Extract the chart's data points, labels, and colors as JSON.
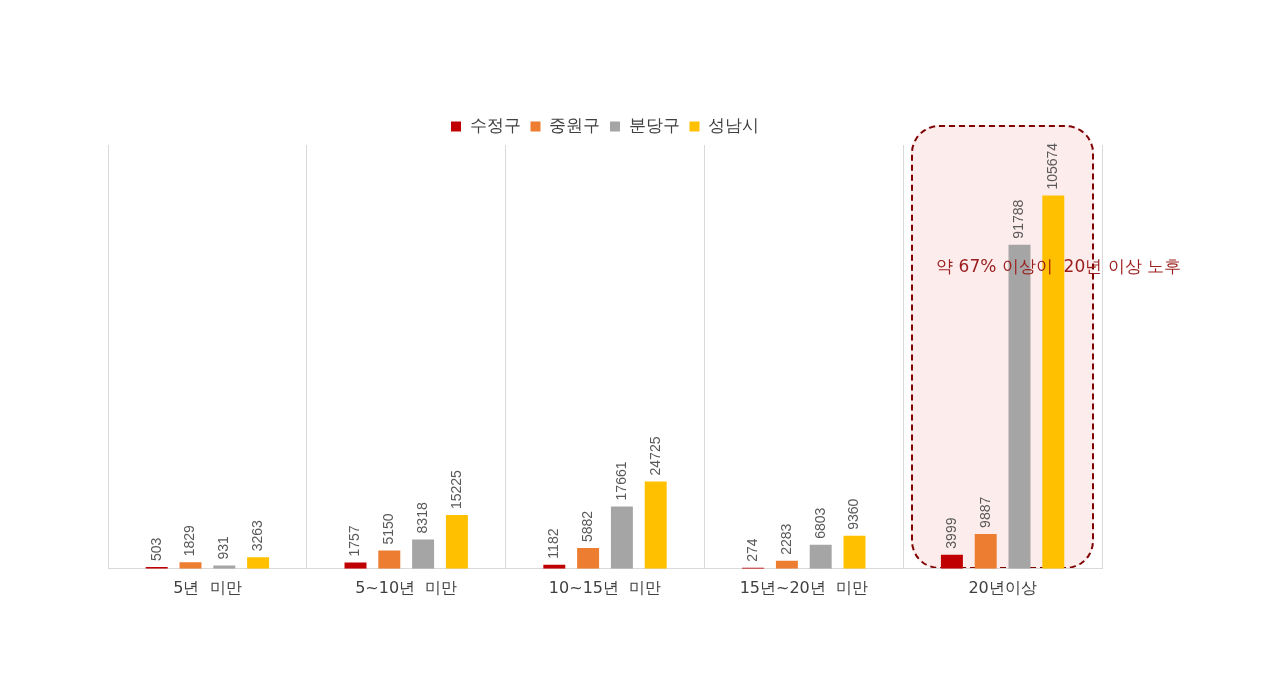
{
  "chart_data": {
    "type": "bar",
    "categories": [
      "5년  미만",
      "5~10년  미만",
      "10~15년  미만",
      "15년~20년  미만",
      "20년이상"
    ],
    "series": [
      {
        "name": "수정구",
        "color": "#c00000",
        "values": [
          503,
          1757,
          1182,
          274,
          3999
        ]
      },
      {
        "name": "중원구",
        "color": "#ed7d31",
        "values": [
          1829,
          5150,
          5882,
          2283,
          9887
        ]
      },
      {
        "name": "분당구",
        "color": "#a5a5a5",
        "values": [
          931,
          8318,
          17661,
          6803,
          91788
        ]
      },
      {
        "name": "성남시",
        "color": "#ffc000",
        "values": [
          3263,
          15225,
          24725,
          9360,
          105674
        ]
      }
    ],
    "bands": [
      {
        "axis": "x",
        "from": "20년이상",
        "to": "20년이상",
        "color": "#fcecec"
      }
    ],
    "data_labels": true,
    "legend": "top",
    "grid": "x",
    "tick_labels": "x",
    "annotations": [
      "약 67% 이상이  20년 이상 노후"
    ]
  }
}
